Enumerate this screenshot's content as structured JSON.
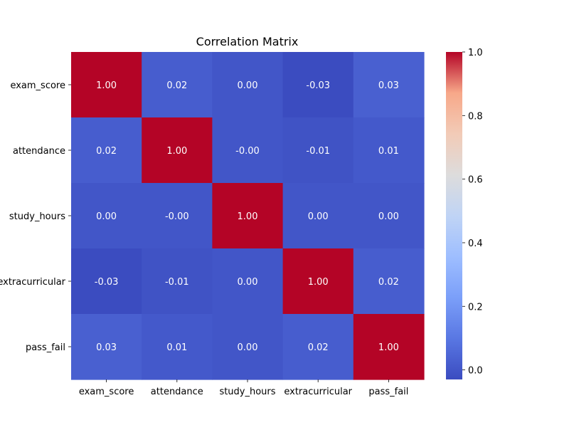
{
  "chart_data": {
    "type": "heatmap",
    "title": "Correlation Matrix",
    "xlabel": "",
    "ylabel": "",
    "x_labels": [
      "exam_score",
      "attendance",
      "study_hours",
      "extracurricular",
      "pass_fail"
    ],
    "y_labels": [
      "exam_score",
      "attendance",
      "study_hours",
      "extracurricular",
      "pass_fail"
    ],
    "values": [
      [
        1.0,
        0.02,
        0.0,
        -0.03,
        0.03
      ],
      [
        0.02,
        1.0,
        -0.0,
        -0.01,
        0.01
      ],
      [
        0.0,
        -0.0,
        1.0,
        0.0,
        0.0
      ],
      [
        -0.03,
        -0.01,
        0.0,
        1.0,
        0.02
      ],
      [
        0.03,
        0.01,
        0.0,
        0.02,
        1.0
      ]
    ],
    "value_labels": [
      [
        "1.00",
        "0.02",
        "0.00",
        "-0.03",
        "0.03"
      ],
      [
        "0.02",
        "1.00",
        "-0.00",
        "-0.01",
        "0.01"
      ],
      [
        "0.00",
        "-0.00",
        "1.00",
        "0.00",
        "0.00"
      ],
      [
        "-0.03",
        "-0.01",
        "0.00",
        "1.00",
        "0.02"
      ],
      [
        "0.03",
        "0.01",
        "0.00",
        "0.02",
        "1.00"
      ]
    ],
    "colormap": "coolwarm",
    "colorbar": {
      "range": [
        -0.03,
        1.0
      ],
      "ticks": [
        0.0,
        0.2,
        0.4,
        0.6,
        0.8,
        1.0
      ],
      "tick_labels": [
        "0.0",
        "0.2",
        "0.4",
        "0.6",
        "0.8",
        "1.0"
      ]
    },
    "grid": false
  }
}
